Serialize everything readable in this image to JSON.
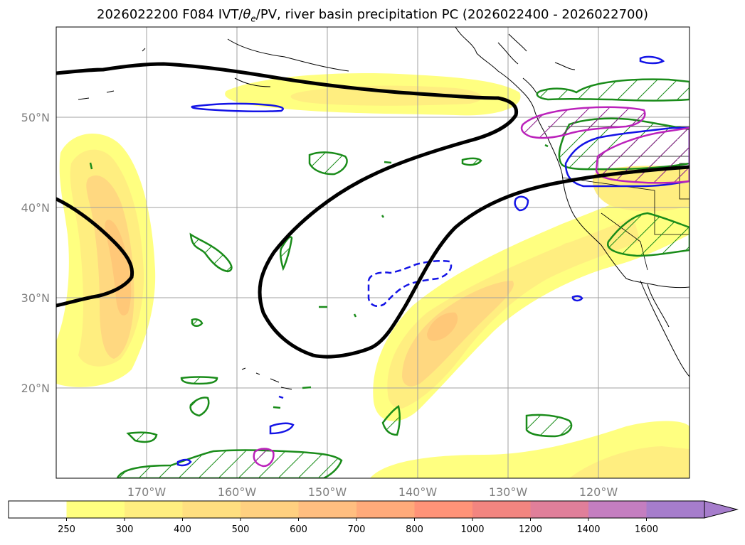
{
  "title": {
    "prefix": "2026022200 F084 IVT/",
    "theta": "θ",
    "theta_sub": "e",
    "suffix": "/PV, river basin precipitation PC (2026022400 - 2026022700)"
  },
  "map": {
    "lon_range": [
      -180,
      -110
    ],
    "lat_range": [
      10,
      60
    ],
    "lon_ticks": [
      {
        "lon": -170,
        "label": "170°W"
      },
      {
        "lon": -160,
        "label": "160°W"
      },
      {
        "lon": -150,
        "label": "150°W"
      },
      {
        "lon": -140,
        "label": "140°W"
      },
      {
        "lon": -130,
        "label": "130°W"
      },
      {
        "lon": -120,
        "label": "120°W"
      }
    ],
    "lat_ticks": [
      {
        "lat": 20,
        "label": "20°N"
      },
      {
        "lat": 30,
        "label": "30°N"
      },
      {
        "lat": 40,
        "label": "40°N"
      },
      {
        "lat": 50,
        "label": "50°N"
      }
    ],
    "grid": true,
    "colors": {
      "ivt_250": "#ffff80",
      "ivt_300": "#ffee80",
      "ivt_400": "#ffd880",
      "ivt_500": "#ffc878",
      "pv_line": "#000000",
      "precip_green": "#1a8c1a",
      "precip_blue": "#1414e6",
      "precip_magenta": "#bb22bb",
      "coast": "#000000"
    }
  },
  "colorbar": {
    "levels": [
      "250",
      "300",
      "400",
      "500",
      "600",
      "700",
      "800",
      "1000",
      "1200",
      "1400",
      "1600"
    ],
    "colors": [
      "#ffffff",
      "#ffff80",
      "#ffee80",
      "#ffdf80",
      "#ffd080",
      "#ffbe80",
      "#ffaa7a",
      "#ff9378",
      "#f28580",
      "#e07f9a",
      "#c47ec0",
      "#a67dcc"
    ],
    "extend": "max"
  }
}
